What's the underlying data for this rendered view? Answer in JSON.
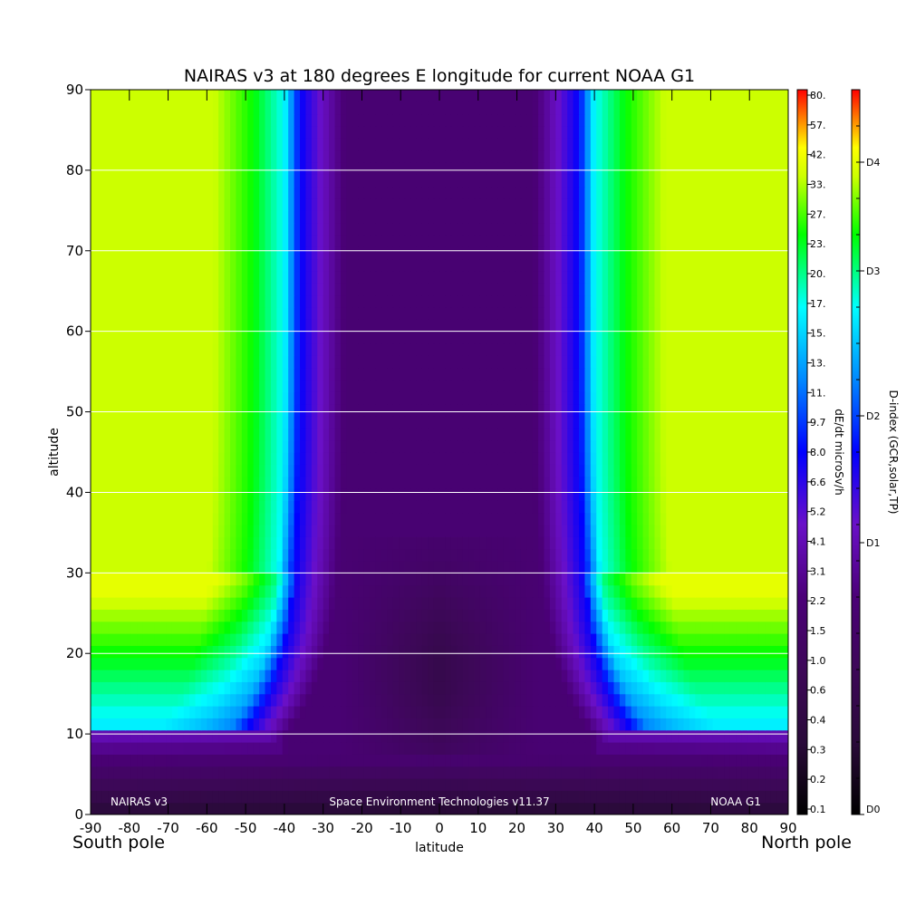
{
  "chart_data": {
    "type": "heatmap",
    "title": "NAIRAS v3 at 180 degrees E longitude for current NOAA G1",
    "xlabel": "latitude",
    "ylabel": "altitude",
    "xlim": [
      -90,
      90
    ],
    "ylim": [
      0,
      90
    ],
    "x_ticks": [
      "-90",
      "-80",
      "-70",
      "-60",
      "-50",
      "-40",
      "-30",
      "-20",
      "-10",
      "0",
      "10",
      "20",
      "30",
      "40",
      "50",
      "60",
      "70",
      "80",
      "90"
    ],
    "y_ticks": [
      "0",
      "10",
      "20",
      "30",
      "40",
      "50",
      "60",
      "70",
      "80",
      "90"
    ],
    "x_tick_values": [
      -90,
      -80,
      -70,
      -60,
      -50,
      -40,
      -30,
      -20,
      -10,
      0,
      10,
      20,
      30,
      40,
      50,
      60,
      70,
      80,
      90
    ],
    "y_tick_values": [
      0,
      10,
      20,
      30,
      40,
      50,
      60,
      70,
      80,
      90
    ],
    "grid": "horizontal lines at each altitude tick",
    "side_labels": {
      "left": "South pole",
      "right": "North pole"
    },
    "footer": {
      "left": "NAIRAS v3",
      "center": "Space Environment Technologies v11.37",
      "right": "NOAA G1"
    },
    "colorbar_dose": {
      "label": "dE/dt microSv/h",
      "ticks": [
        "0.1",
        "0.2",
        "0.3",
        "0.4",
        "0.6",
        "1.0",
        "1.5",
        "2.2",
        "3.1",
        "4.1",
        "5.2",
        "6.6",
        "8.0",
        "9.7",
        "11.",
        "13.",
        "15.",
        "17.",
        "20.",
        "23.",
        "27.",
        "33.",
        "42.",
        "57.",
        "80."
      ]
    },
    "colorbar_dindex": {
      "label": "D-index (GCR,solar,TP)",
      "ticks": [
        "D0",
        "D1",
        "D2",
        "D3",
        "D4"
      ],
      "tick_fractions": [
        0,
        0.375,
        0.55,
        0.75,
        0.9
      ]
    },
    "colormap_stops": [
      {
        "v": 0.0,
        "color": "#000000"
      },
      {
        "v": 0.1,
        "color": "#2a0a3a"
      },
      {
        "v": 0.2,
        "color": "#3d0858"
      },
      {
        "v": 0.3,
        "color": "#4b0078"
      },
      {
        "v": 0.4,
        "color": "#6a10c8"
      },
      {
        "v": 0.5,
        "color": "#0000ff"
      },
      {
        "v": 0.6,
        "color": "#0088ff"
      },
      {
        "v": 0.7,
        "color": "#00ffff"
      },
      {
        "v": 0.8,
        "color": "#00ff00"
      },
      {
        "v": 0.88,
        "color": "#ccff00"
      },
      {
        "v": 0.92,
        "color": "#ffff00"
      },
      {
        "v": 1.0,
        "color": "#ff0000"
      }
    ]
  }
}
